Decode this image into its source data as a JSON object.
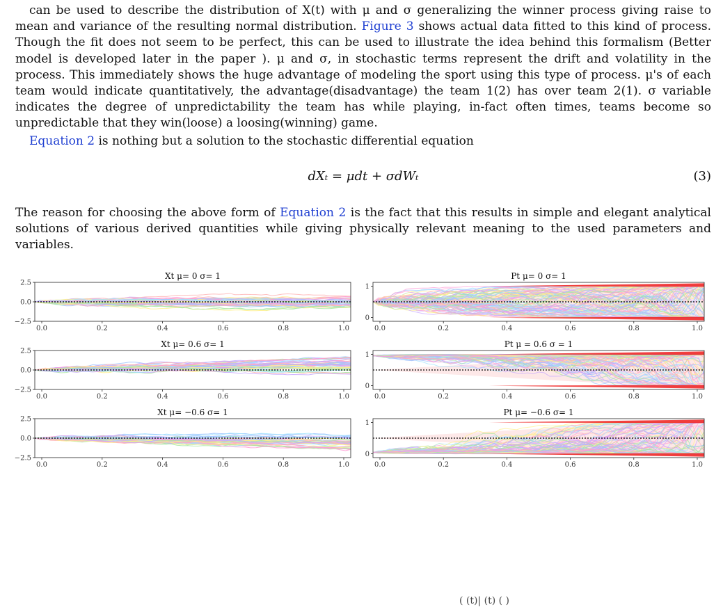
{
  "paragraphs": {
    "p1": "can be used to describe the distribution of X(t) with μ and σ generalizing the winner process giving raise to mean and variance of the resulting normal distribution. ",
    "p1_ref": "Figure 3",
    "p1_rest": " shows actual data fitted to this kind of process. Though the fit does not seem to be perfect, this can be used to illustrate the idea behind this formalism (Better model is developed later in the paper ). μ and σ, in stochastic terms represent the drift and volatility in the process. This immediately shows the huge advantage of modeling the sport using this type of process. μ's of each team would indicate quantitatively, the advantage(disadvantage) the team 1(2) has over team 2(1). σ variable indicates the degree of unpredictability the team has while playing, in-fact often times, teams become so unpredictable that they win(loose) a loosing(winning) game.",
    "p2_ref": "Equation 2",
    "p2_rest": " is nothing but a solution to the stochastic differential equation",
    "p3_start": "The reason for choosing the above form of ",
    "p3_ref": "Equation 2",
    "p3_rest": " is the fact that this results in simple and elegant analytical solutions of various derived quantities while giving physically relevant meaning to the used parameters and variables."
  },
  "equation": {
    "expression": "dXₜ = μdt + σdWₜ",
    "number": "(3)"
  },
  "footer_fragment": "(   (t)|  (t)  (    )",
  "colors": {
    "link": "#1f3fd1",
    "path_palette": [
      "#9ec3ff",
      "#ffb3b3",
      "#fff08a",
      "#a8e6a1",
      "#c8a8ff",
      "#ff9ad5",
      "#9fe3ff"
    ],
    "envelope": "#f02020",
    "baseline": "#000000"
  },
  "chart_data": [
    {
      "type": "line",
      "title": "Xt μ= 0 σ= 1",
      "x_ticks": [
        "0.0",
        "0.2",
        "0.4",
        "0.6",
        "0.8",
        "1.0"
      ],
      "y_ticks": [
        "2.5",
        "0.0",
        "−2.5"
      ],
      "xlim": [
        0,
        1
      ],
      "ylim": [
        -2.5,
        2.5
      ],
      "drift": 0,
      "sigma": 1,
      "kind": "X",
      "baseline": 0
    },
    {
      "type": "line",
      "title": "Pt μ= 0 σ= 1",
      "x_ticks": [
        "0.0",
        "0.2",
        "0.4",
        "0.6",
        "0.8",
        "1.0"
      ],
      "y_ticks": [
        "1",
        "0"
      ],
      "xlim": [
        0,
        1
      ],
      "ylim": [
        0,
        1
      ],
      "drift": 0,
      "sigma": 1,
      "kind": "P",
      "baseline": 0.5
    },
    {
      "type": "line",
      "title": "Xt μ= 0.6 σ= 1",
      "x_ticks": [
        "0.0",
        "0.2",
        "0.4",
        "0.6",
        "0.8",
        "1.0"
      ],
      "y_ticks": [
        "2.5",
        "0.0",
        "−2.5"
      ],
      "xlim": [
        0,
        1
      ],
      "ylim": [
        -2.5,
        2.5
      ],
      "drift": 0.6,
      "sigma": 1,
      "kind": "X",
      "baseline": 0
    },
    {
      "type": "line",
      "title": "Pt μ = 0.6 σ = 1",
      "x_ticks": [
        "0.0",
        "0.2",
        "0.4",
        "0.6",
        "0.8",
        "1.0"
      ],
      "y_ticks": [
        "1",
        "0"
      ],
      "xlim": [
        0,
        1
      ],
      "ylim": [
        0,
        1
      ],
      "drift": 0.6,
      "sigma": 1,
      "kind": "P",
      "baseline": 0.5
    },
    {
      "type": "line",
      "title": "Xt μ= −0.6 σ= 1",
      "x_ticks": [
        "0.0",
        "0.2",
        "0.4",
        "0.6",
        "0.8",
        "1.0"
      ],
      "y_ticks": [
        "2.5",
        "0.0",
        "−2.5"
      ],
      "xlim": [
        0,
        1
      ],
      "ylim": [
        -2.5,
        2.5
      ],
      "drift": -0.6,
      "sigma": 1,
      "kind": "X",
      "baseline": 0
    },
    {
      "type": "line",
      "title": "Pt μ= −0.6 σ= 1",
      "x_ticks": [
        "0.0",
        "0.2",
        "0.4",
        "0.6",
        "0.8",
        "1.0"
      ],
      "y_ticks": [
        "1",
        "0"
      ],
      "xlim": [
        0,
        1
      ],
      "ylim": [
        0,
        1
      ],
      "drift": -0.6,
      "sigma": 1,
      "kind": "P",
      "baseline": 0.5
    }
  ]
}
